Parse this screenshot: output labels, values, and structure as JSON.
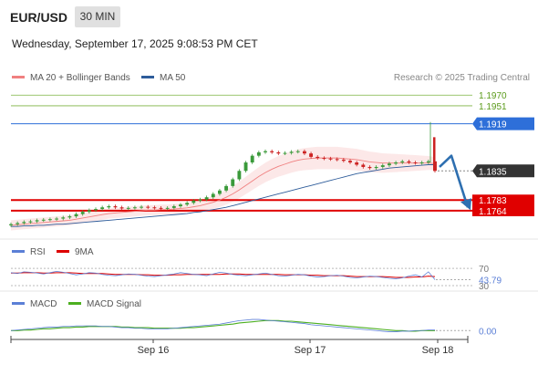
{
  "header": {
    "symbol": "EUR/USD",
    "timeframe": "30 MIN",
    "datetime": "Wednesday, September 17, 2025 9:08:53 PM CET"
  },
  "credit": "Research © 2025 Trading Central",
  "colors": {
    "ma20": "#f08080",
    "ma50": "#2e5c9a",
    "resistance": "#7cb342",
    "pivot": "#2e6fd9",
    "support": "#e00000",
    "current": "#333333",
    "rsi": "#5b7fd6",
    "rsi_ma": "#dd0000",
    "macd": "#5b7fd6",
    "macd_signal": "#4caf20",
    "candle_up": "#3a9a3a",
    "candle_down": "#cc2222",
    "arrow": "#2e6fb0"
  },
  "chart_data": [
    {
      "type": "candlestick",
      "name": "price",
      "legend": [
        "MA 20 + Bollinger Bands",
        "MA 50"
      ],
      "ylim": [
        1.172,
        1.1985
      ],
      "x_ticks": [
        "Sep 16",
        "Sep 17",
        "Sep 18"
      ],
      "levels": [
        {
          "label": "1.1970",
          "value": 1.197,
          "kind": "resistance"
        },
        {
          "label": "1.1951",
          "value": 1.1951,
          "kind": "resistance"
        },
        {
          "label": "1.1919",
          "value": 1.1919,
          "kind": "pivot"
        },
        {
          "label": "1.1835",
          "value": 1.1835,
          "kind": "current"
        },
        {
          "label": "1.1783",
          "value": 1.1783,
          "kind": "support"
        },
        {
          "label": "1.1764",
          "value": 1.1764,
          "kind": "support"
        }
      ],
      "close_series": [
        1.174,
        1.1742,
        1.1744,
        1.1745,
        1.1747,
        1.1748,
        1.1749,
        1.175,
        1.1752,
        1.1754,
        1.1758,
        1.1762,
        1.1765,
        1.1767,
        1.177,
        1.1772,
        1.177,
        1.1768,
        1.1769,
        1.177,
        1.1771,
        1.177,
        1.1769,
        1.1768,
        1.1769,
        1.1772,
        1.1775,
        1.1778,
        1.1782,
        1.1784,
        1.1788,
        1.1794,
        1.18,
        1.1808,
        1.182,
        1.1835,
        1.185,
        1.1862,
        1.1868,
        1.187,
        1.1868,
        1.1866,
        1.1867,
        1.1869,
        1.187,
        1.1866,
        1.186,
        1.1858,
        1.1857,
        1.1856,
        1.1855,
        1.1853,
        1.185,
        1.1846,
        1.1842,
        1.184,
        1.1842,
        1.1845,
        1.1848,
        1.185,
        1.1852,
        1.185,
        1.1849,
        1.185,
        1.1852,
        1.1835
      ],
      "ma20": [
        1.1738,
        1.1739,
        1.174,
        1.1741,
        1.1742,
        1.1743,
        1.1744,
        1.1745,
        1.1746,
        1.1747,
        1.1749,
        1.1751,
        1.1753,
        1.1755,
        1.1757,
        1.1759,
        1.176,
        1.1761,
        1.1762,
        1.1763,
        1.1764,
        1.1765,
        1.1765,
        1.1766,
        1.1766,
        1.1767,
        1.1768,
        1.1769,
        1.1771,
        1.1773,
        1.1776,
        1.1779,
        1.1783,
        1.1788,
        1.1794,
        1.1801,
        1.1809,
        1.1817,
        1.1825,
        1.1832,
        1.1838,
        1.1843,
        1.1847,
        1.1851,
        1.1854,
        1.1856,
        1.1857,
        1.1858,
        1.1858,
        1.1858,
        1.1858,
        1.1857,
        1.1856,
        1.1855,
        1.1853,
        1.1851,
        1.185,
        1.1849,
        1.1849,
        1.1849,
        1.1849,
        1.1849,
        1.1849,
        1.1849,
        1.1849,
        1.1848
      ],
      "ma50": [
        1.1736,
        1.1736,
        1.1737,
        1.1737,
        1.1738,
        1.1738,
        1.1739,
        1.174,
        1.174,
        1.1741,
        1.1742,
        1.1743,
        1.1744,
        1.1745,
        1.1746,
        1.1747,
        1.1748,
        1.1749,
        1.175,
        1.1751,
        1.1752,
        1.1753,
        1.1754,
        1.1755,
        1.1756,
        1.1757,
        1.1758,
        1.1759,
        1.1761,
        1.1762,
        1.1764,
        1.1766,
        1.1768,
        1.177,
        1.1773,
        1.1776,
        1.1779,
        1.1782,
        1.1785,
        1.1788,
        1.1791,
        1.1794,
        1.1797,
        1.18,
        1.1803,
        1.1806,
        1.1809,
        1.1812,
        1.1815,
        1.1818,
        1.1821,
        1.1824,
        1.1827,
        1.183,
        1.1832,
        1.1834,
        1.1836,
        1.1838,
        1.184,
        1.1841,
        1.1842,
        1.1843,
        1.1844,
        1.1845,
        1.1846,
        1.1846
      ]
    },
    {
      "type": "line",
      "name": "rsi",
      "legend": [
        "RSI",
        "9MA"
      ],
      "ylim": [
        30,
        85
      ],
      "level_labels": [
        "70",
        "30"
      ],
      "current_label": "43.79",
      "rsi": [
        60,
        58,
        62,
        61,
        59,
        57,
        60,
        63,
        61,
        58,
        55,
        57,
        60,
        59,
        56,
        54,
        53,
        55,
        57,
        56,
        54,
        52,
        51,
        53,
        55,
        57,
        60,
        58,
        56,
        55,
        53,
        57,
        61,
        59,
        56,
        54,
        53,
        55,
        57,
        59,
        56,
        53,
        52,
        54,
        56,
        55,
        52,
        50,
        51,
        53,
        54,
        52,
        49,
        48,
        50,
        52,
        51,
        49,
        47,
        46,
        48,
        52,
        55,
        50,
        62,
        43.79
      ],
      "rsi_ma": [
        59,
        59,
        60,
        60,
        60,
        59,
        59,
        60,
        60,
        60,
        59,
        58,
        58,
        58,
        58,
        57,
        56,
        56,
        56,
        56,
        55,
        55,
        54,
        54,
        54,
        55,
        55,
        56,
        56,
        56,
        56,
        56,
        56,
        57,
        57,
        57,
        56,
        56,
        56,
        56,
        56,
        56,
        55,
        55,
        55,
        55,
        54,
        54,
        53,
        53,
        53,
        53,
        52,
        51,
        51,
        51,
        51,
        51,
        50,
        49,
        49,
        49,
        50,
        50,
        52,
        51
      ]
    },
    {
      "type": "line",
      "name": "macd",
      "legend": [
        "MACD",
        "MACD Signal"
      ],
      "ylim": [
        -0.0012,
        0.003
      ],
      "current_label": "0.00",
      "macd": [
        0.0,
        0.0001,
        0.0002,
        0.0003,
        0.0004,
        0.0005,
        0.0006,
        0.0006,
        0.0007,
        0.0007,
        0.0008,
        0.0008,
        0.0008,
        0.0008,
        0.0007,
        0.0007,
        0.0006,
        0.0005,
        0.0005,
        0.0004,
        0.0004,
        0.0003,
        0.0003,
        0.0003,
        0.0003,
        0.0004,
        0.0005,
        0.0006,
        0.0007,
        0.0008,
        0.0009,
        0.001,
        0.0011,
        0.0013,
        0.0015,
        0.0017,
        0.0018,
        0.0019,
        0.0019,
        0.0018,
        0.0017,
        0.0016,
        0.0015,
        0.0014,
        0.0013,
        0.0012,
        0.001,
        0.0009,
        0.0008,
        0.0007,
        0.0006,
        0.0005,
        0.0004,
        0.0003,
        0.0002,
        0.0001,
        0.0,
        -0.0001,
        -0.0002,
        -0.0002,
        -0.0001,
        -0.0001,
        0.0,
        0.0,
        0.0001,
        0.0001
      ],
      "signal": [
        0.0,
        0.0,
        0.0001,
        0.0001,
        0.0002,
        0.0003,
        0.0003,
        0.0004,
        0.0005,
        0.0005,
        0.0006,
        0.0006,
        0.0007,
        0.0007,
        0.0007,
        0.0007,
        0.0007,
        0.0006,
        0.0006,
        0.0005,
        0.0005,
        0.0005,
        0.0004,
        0.0004,
        0.0004,
        0.0004,
        0.0004,
        0.0005,
        0.0005,
        0.0006,
        0.0007,
        0.0008,
        0.0009,
        0.001,
        0.0011,
        0.0013,
        0.0014,
        0.0015,
        0.0016,
        0.0017,
        0.0017,
        0.0017,
        0.0016,
        0.0016,
        0.0015,
        0.0014,
        0.0013,
        0.0012,
        0.0011,
        0.001,
        0.0009,
        0.0008,
        0.0007,
        0.0006,
        0.0005,
        0.0004,
        0.0003,
        0.0002,
        0.0001,
        0.0,
        0.0,
        -0.0001,
        -0.0001,
        0.0,
        0.0,
        0.0
      ]
    }
  ]
}
